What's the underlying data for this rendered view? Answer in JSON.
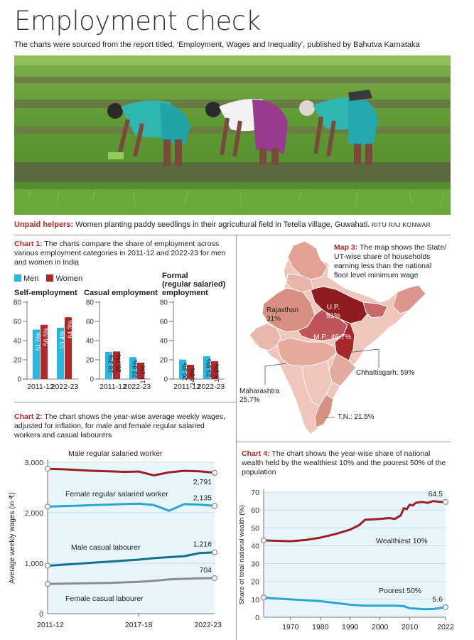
{
  "title": "Employment check",
  "subtitle": "The charts were sourced from the report titled, ‘Employment, Wages and Inequality’, published by Bahutva Karnataka",
  "caption": {
    "lead": "Unpaid helpers:",
    "text": " Women planting paddy seedlings in their agricultural field in Tetelia village, Guwahati.",
    "credit": " RITU RAJ KONWAR"
  },
  "colors": {
    "men": "#29b6e0",
    "women": "#b3262a",
    "accent": "#b3262a"
  },
  "chart_data": [
    {
      "id": "chart1",
      "type": "bar",
      "label": "Chart 1:",
      "description": "The charts compare the share of employment across various employment categories in 2011-12 and 2022-23 for men and women in India",
      "legend": [
        "Men",
        "Women"
      ],
      "categories": [
        "2011-12",
        "2022-23"
      ],
      "ylim": [
        0,
        80
      ],
      "yticks": [
        "0",
        "20",
        "40",
        "60",
        "80"
      ],
      "panels": [
        {
          "title": "Self-employment",
          "series": [
            {
              "name": "Men",
              "values": [
                51.5,
                53.4
              ],
              "labels": [
                "51.5%",
                "53.4%"
              ]
            },
            {
              "name": "Women",
              "values": [
                56.5,
                64.3
              ],
              "labels": [
                "56.5%",
                "64.3%"
              ]
            }
          ]
        },
        {
          "title": "Casual employment",
          "series": [
            {
              "name": "Men",
              "values": [
                28.2,
                22.8
              ],
              "labels": [
                "28.2%",
                "22.8%"
              ]
            },
            {
              "name": "Women",
              "values": [
                28.7,
                17.1
              ],
              "labels": [
                "28.7%",
                "17.1%"
              ]
            }
          ]
        },
        {
          "title": "Formal (regular salaried) employment",
          "title_lines": [
            "Formal",
            "(regular salaried)",
            "employment"
          ],
          "series": [
            {
              "name": "Men",
              "values": [
                20.3,
                23.8
              ],
              "labels": [
                "20.3%",
                "23.8%"
              ]
            },
            {
              "name": "Women",
              "values": [
                14.8,
                18.6
              ],
              "labels": [
                "14.8%",
                "18.6%"
              ]
            }
          ]
        }
      ]
    },
    {
      "id": "chart2",
      "type": "line",
      "label": "Chart 2:",
      "description": "The chart shows the year-wise average weekly wages, adjusted for inflation, for male and female regular salaried workers and casual labourers",
      "ylabel": "Average weekly wages (in ₹)",
      "ylim": [
        0,
        3000
      ],
      "yticks": [
        {
          "v": 0,
          "t": "0"
        },
        {
          "v": 1000,
          "t": "1,000"
        },
        {
          "v": 2000,
          "t": "2,000"
        },
        {
          "v": 3000,
          "t": "3,000"
        }
      ],
      "xticks": [
        "2011-12",
        "2017-18",
        "2022-23"
      ],
      "x": [
        2011,
        2012,
        2013,
        2014,
        2015,
        2016,
        2017,
        2018,
        2019,
        2020,
        2021,
        2022
      ],
      "series": [
        {
          "name": "Male regular salaried worker",
          "color": "#9c1f25",
          "end_label": "2,791",
          "values": [
            2870,
            2860,
            2845,
            2830,
            2820,
            2810,
            2815,
            2740,
            2800,
            2830,
            2820,
            2791
          ]
        },
        {
          "name": "Female regular salaried worker",
          "color": "#2aa5d6",
          "end_label": "2,135",
          "values": [
            2120,
            2130,
            2140,
            2150,
            2160,
            2170,
            2180,
            2150,
            2040,
            2170,
            2160,
            2135
          ]
        },
        {
          "name": "Male casual labourer",
          "color": "#13708f",
          "end_label": "1,216",
          "values": [
            950,
            970,
            990,
            1010,
            1030,
            1050,
            1070,
            1100,
            1120,
            1140,
            1200,
            1216
          ]
        },
        {
          "name": "Female casual labourer",
          "color": "#8c8c8c",
          "end_label": "704",
          "values": [
            590,
            595,
            600,
            605,
            610,
            620,
            630,
            650,
            680,
            690,
            700,
            704
          ]
        }
      ]
    },
    {
      "id": "map3",
      "type": "map",
      "label": "Map 3:",
      "description": "The map shows the State/ UT-wise share of households earning less than the national floor level minimum wage",
      "regions": [
        {
          "name": "U.P.",
          "value": "51%"
        },
        {
          "name": "Rajasthan",
          "value": "31%"
        },
        {
          "name": "M.P.",
          "value": "46.7%"
        },
        {
          "name": "Chhattisgarh",
          "value": "59%"
        },
        {
          "name": "Maharashtra",
          "value": "25.7%"
        },
        {
          "name": "T.N.",
          "value": "21.5%"
        }
      ]
    },
    {
      "id": "chart4",
      "type": "line",
      "label": "Chart 4:",
      "description": "The chart shows the year-wise share of national wealth held by the wealthiest 10% and the poorest 50% of the population",
      "ylabel": "Share of total national wealth (%)",
      "ylim": [
        0,
        70
      ],
      "yticks": [
        "0",
        "10",
        "20",
        "30",
        "40",
        "50",
        "60",
        "70"
      ],
      "xticks": [
        "1970",
        "1980",
        "1990",
        "2000",
        "2010",
        "2022"
      ],
      "xlim": [
        1961,
        2022
      ],
      "series": [
        {
          "name": "Wealthiest 10%",
          "color": "#9c1f25",
          "end_label": "64.5",
          "points": [
            [
              1961,
              43
            ],
            [
              1970,
              42.5
            ],
            [
              1975,
              43.2
            ],
            [
              1980,
              44.5
            ],
            [
              1985,
              46.5
            ],
            [
              1990,
              49
            ],
            [
              1993,
              51.5
            ],
            [
              1995,
              54.5
            ],
            [
              2000,
              55
            ],
            [
              2003,
              55.5
            ],
            [
              2005,
              55
            ],
            [
              2007,
              57
            ],
            [
              2008,
              61
            ],
            [
              2009,
              60.5
            ],
            [
              2010,
              63
            ],
            [
              2011,
              62.5
            ],
            [
              2012,
              64
            ],
            [
              2014,
              64.5
            ],
            [
              2016,
              64
            ],
            [
              2018,
              65
            ],
            [
              2020,
              64.5
            ],
            [
              2022,
              64.5
            ]
          ]
        },
        {
          "name": "Poorest 50%",
          "color": "#2aa5d6",
          "end_label": "5.6",
          "points": [
            [
              1961,
              11
            ],
            [
              1965,
              10.5
            ],
            [
              1970,
              10
            ],
            [
              1975,
              9.5
            ],
            [
              1980,
              9
            ],
            [
              1985,
              8
            ],
            [
              1990,
              7
            ],
            [
              1995,
              6.5
            ],
            [
              2000,
              6.5
            ],
            [
              2005,
              6.5
            ],
            [
              2008,
              6.2
            ],
            [
              2010,
              5
            ],
            [
              2012,
              4.8
            ],
            [
              2015,
              4.5
            ],
            [
              2018,
              4.6
            ],
            [
              2022,
              5.6
            ]
          ]
        }
      ]
    }
  ]
}
